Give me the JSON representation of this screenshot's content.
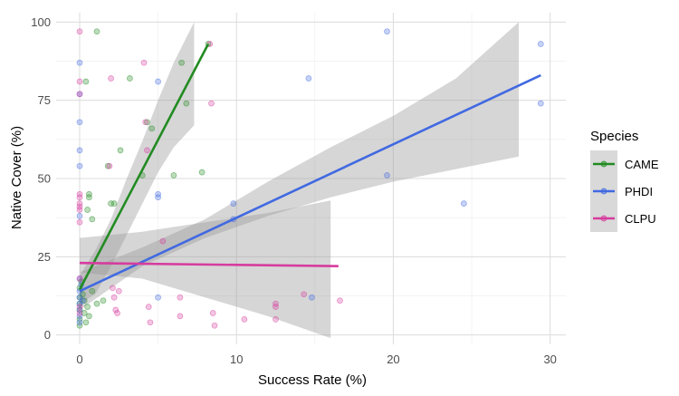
{
  "chart_data": {
    "type": "scatter",
    "title": "",
    "xlabel": "Success Rate (%)",
    "ylabel": "Native Cover (%)",
    "xlim": [
      -1.5,
      31
    ],
    "ylim": [
      -3,
      103
    ],
    "xticks": [
      0,
      10,
      20,
      30
    ],
    "yticks": [
      0,
      25,
      50,
      75,
      100
    ],
    "grid": true,
    "legend_title": "Species",
    "legend_position": "right",
    "series": [
      {
        "name": "CAME",
        "color": "#228B22",
        "points": [
          [
            0,
            15
          ],
          [
            0,
            12
          ],
          [
            0,
            10
          ],
          [
            0,
            8
          ],
          [
            0,
            5
          ],
          [
            0,
            3
          ],
          [
            0.1,
            17
          ],
          [
            0.2,
            13
          ],
          [
            0.3,
            11
          ],
          [
            0.3,
            7
          ],
          [
            0.4,
            4
          ],
          [
            0.4,
            81
          ],
          [
            0.5,
            40
          ],
          [
            0.5,
            9
          ],
          [
            0.6,
            45
          ],
          [
            0.6,
            44
          ],
          [
            0.6,
            6
          ],
          [
            0.8,
            37
          ],
          [
            0.8,
            14
          ],
          [
            1.1,
            97
          ],
          [
            1.1,
            10
          ],
          [
            1.5,
            11
          ],
          [
            1.8,
            54
          ],
          [
            2.0,
            42
          ],
          [
            2.2,
            42
          ],
          [
            2.6,
            59
          ],
          [
            3.2,
            82
          ],
          [
            4.0,
            51
          ],
          [
            4.3,
            68
          ],
          [
            4.6,
            66
          ],
          [
            6.0,
            51
          ],
          [
            6.5,
            87
          ],
          [
            6.8,
            74
          ],
          [
            7.8,
            52
          ],
          [
            8.2,
            93
          ]
        ],
        "fit": [
          [
            0,
            14.5
          ],
          [
            8.2,
            93
          ]
        ],
        "ci": {
          "x": [
            0,
            1,
            2,
            3,
            4,
            5,
            6,
            7.3
          ],
          "lower": [
            10,
            13,
            22,
            32,
            42,
            52,
            60,
            67
          ],
          "upper": [
            19,
            27,
            37,
            50,
            62,
            75,
            87,
            100
          ]
        }
      },
      {
        "name": "PHDI",
        "color": "#4169E1",
        "points": [
          [
            0,
            77
          ],
          [
            0,
            87
          ],
          [
            0,
            68
          ],
          [
            0,
            59
          ],
          [
            0,
            54
          ],
          [
            0,
            38
          ],
          [
            0,
            18
          ],
          [
            0,
            14
          ],
          [
            0,
            12
          ],
          [
            0,
            10
          ],
          [
            0,
            8
          ],
          [
            0,
            6
          ],
          [
            0,
            4
          ],
          [
            0.1,
            16
          ],
          [
            0.2,
            11
          ],
          [
            5,
            81
          ],
          [
            5,
            45
          ],
          [
            5,
            44
          ],
          [
            5,
            12
          ],
          [
            9.8,
            42
          ],
          [
            9.8,
            37
          ],
          [
            14.6,
            82
          ],
          [
            14.8,
            12
          ],
          [
            19.6,
            97
          ],
          [
            19.6,
            51
          ],
          [
            24.5,
            42
          ],
          [
            29.4,
            93
          ],
          [
            29.4,
            74
          ]
        ],
        "fit": [
          [
            0,
            14
          ],
          [
            29.4,
            83
          ]
        ],
        "ci": {
          "x": [
            0,
            4,
            8,
            12,
            16,
            20,
            24,
            28
          ],
          "lower": [
            8,
            22,
            31,
            38,
            44,
            49,
            53,
            57
          ],
          "upper": [
            20,
            28,
            37,
            49,
            60,
            70,
            82,
            100
          ]
        }
      },
      {
        "name": "CLPU",
        "color": "#D63C9E",
        "points": [
          [
            0,
            97
          ],
          [
            0,
            81
          ],
          [
            0,
            77
          ],
          [
            0,
            45
          ],
          [
            0,
            44
          ],
          [
            0,
            42
          ],
          [
            0,
            41
          ],
          [
            0,
            40
          ],
          [
            0,
            36
          ],
          [
            0,
            18
          ],
          [
            0,
            9
          ],
          [
            0,
            7
          ],
          [
            1.9,
            54
          ],
          [
            2.0,
            82
          ],
          [
            2.1,
            15
          ],
          [
            2.2,
            12
          ],
          [
            2.3,
            8
          ],
          [
            2.4,
            7
          ],
          [
            2.5,
            14
          ],
          [
            4.1,
            87
          ],
          [
            4.2,
            68
          ],
          [
            4.3,
            59
          ],
          [
            4.4,
            9
          ],
          [
            4.5,
            4
          ],
          [
            5.3,
            30
          ],
          [
            6.4,
            12
          ],
          [
            6.4,
            6
          ],
          [
            8.3,
            93
          ],
          [
            8.4,
            74
          ],
          [
            8.5,
            7
          ],
          [
            8.6,
            3
          ],
          [
            10.5,
            5
          ],
          [
            12.5,
            10
          ],
          [
            12.5,
            9
          ],
          [
            12.5,
            5
          ],
          [
            14.3,
            13
          ],
          [
            16.6,
            11
          ]
        ],
        "fit": [
          [
            0,
            23
          ],
          [
            16.5,
            22
          ]
        ],
        "ci": {
          "x": [
            0,
            4,
            8,
            12,
            16
          ],
          "lower": [
            20,
            18,
            12,
            6,
            -1
          ],
          "upper": [
            31,
            33,
            36,
            39,
            43
          ]
        }
      }
    ]
  }
}
